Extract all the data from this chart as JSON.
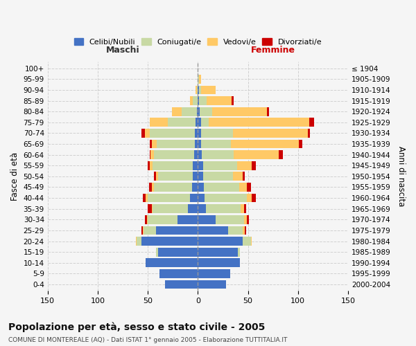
{
  "age_groups": [
    "0-4",
    "5-9",
    "10-14",
    "15-19",
    "20-24",
    "25-29",
    "30-34",
    "35-39",
    "40-44",
    "45-49",
    "50-54",
    "55-59",
    "60-64",
    "65-69",
    "70-74",
    "75-79",
    "80-84",
    "85-89",
    "90-94",
    "95-99",
    "100+"
  ],
  "birth_years": [
    "2000-2004",
    "1995-1999",
    "1990-1994",
    "1985-1989",
    "1980-1984",
    "1975-1979",
    "1970-1974",
    "1965-1969",
    "1960-1964",
    "1955-1959",
    "1950-1954",
    "1945-1949",
    "1940-1944",
    "1935-1939",
    "1930-1934",
    "1925-1929",
    "1920-1924",
    "1915-1919",
    "1910-1914",
    "1905-1909",
    "≤ 1904"
  ],
  "colors": {
    "celibi": "#4472C4",
    "coniugati": "#c8d9a4",
    "vedovi": "#ffc966",
    "divorziati": "#cc0000"
  },
  "male": {
    "celibi": [
      33,
      38,
      52,
      40,
      56,
      42,
      20,
      10,
      8,
      6,
      5,
      5,
      4,
      3,
      3,
      2,
      1,
      0,
      0,
      0,
      0
    ],
    "coniugati": [
      0,
      0,
      0,
      2,
      5,
      12,
      30,
      35,
      42,
      38,
      35,
      40,
      40,
      38,
      45,
      28,
      15,
      5,
      1,
      0,
      0
    ],
    "vedovi": [
      0,
      0,
      0,
      0,
      1,
      1,
      1,
      1,
      2,
      2,
      2,
      3,
      3,
      5,
      5,
      18,
      10,
      3,
      1,
      0,
      0
    ],
    "divorziati": [
      0,
      0,
      0,
      0,
      0,
      1,
      2,
      4,
      3,
      3,
      2,
      2,
      1,
      2,
      3,
      0,
      0,
      0,
      0,
      0,
      0
    ]
  },
  "female": {
    "nubili": [
      28,
      32,
      42,
      40,
      45,
      30,
      18,
      8,
      7,
      6,
      5,
      5,
      4,
      3,
      3,
      3,
      2,
      1,
      1,
      0,
      0
    ],
    "coniugati": [
      0,
      0,
      0,
      2,
      8,
      15,
      28,
      35,
      42,
      35,
      30,
      34,
      32,
      30,
      32,
      8,
      12,
      8,
      2,
      1,
      0
    ],
    "vedove": [
      0,
      0,
      0,
      0,
      1,
      2,
      3,
      3,
      5,
      8,
      10,
      15,
      45,
      68,
      75,
      100,
      55,
      25,
      15,
      2,
      0
    ],
    "divorziate": [
      0,
      0,
      0,
      0,
      0,
      1,
      2,
      2,
      4,
      4,
      2,
      4,
      4,
      3,
      2,
      5,
      2,
      2,
      0,
      0,
      0
    ]
  },
  "xlim": 150,
  "title": "Popolazione per età, sesso e stato civile - 2005",
  "subtitle": "COMUNE DI MONTEREALE (AQ) - Dati ISTAT 1° gennaio 2005 - Elaborazione TUTTITALIA.IT",
  "ylabel_left": "Fasce di età",
  "ylabel_right": "Anni di nascita",
  "xlabel_left": "Maschi",
  "xlabel_right": "Femmine",
  "bg_color": "#f5f5f5",
  "grid_color": "#cccccc"
}
